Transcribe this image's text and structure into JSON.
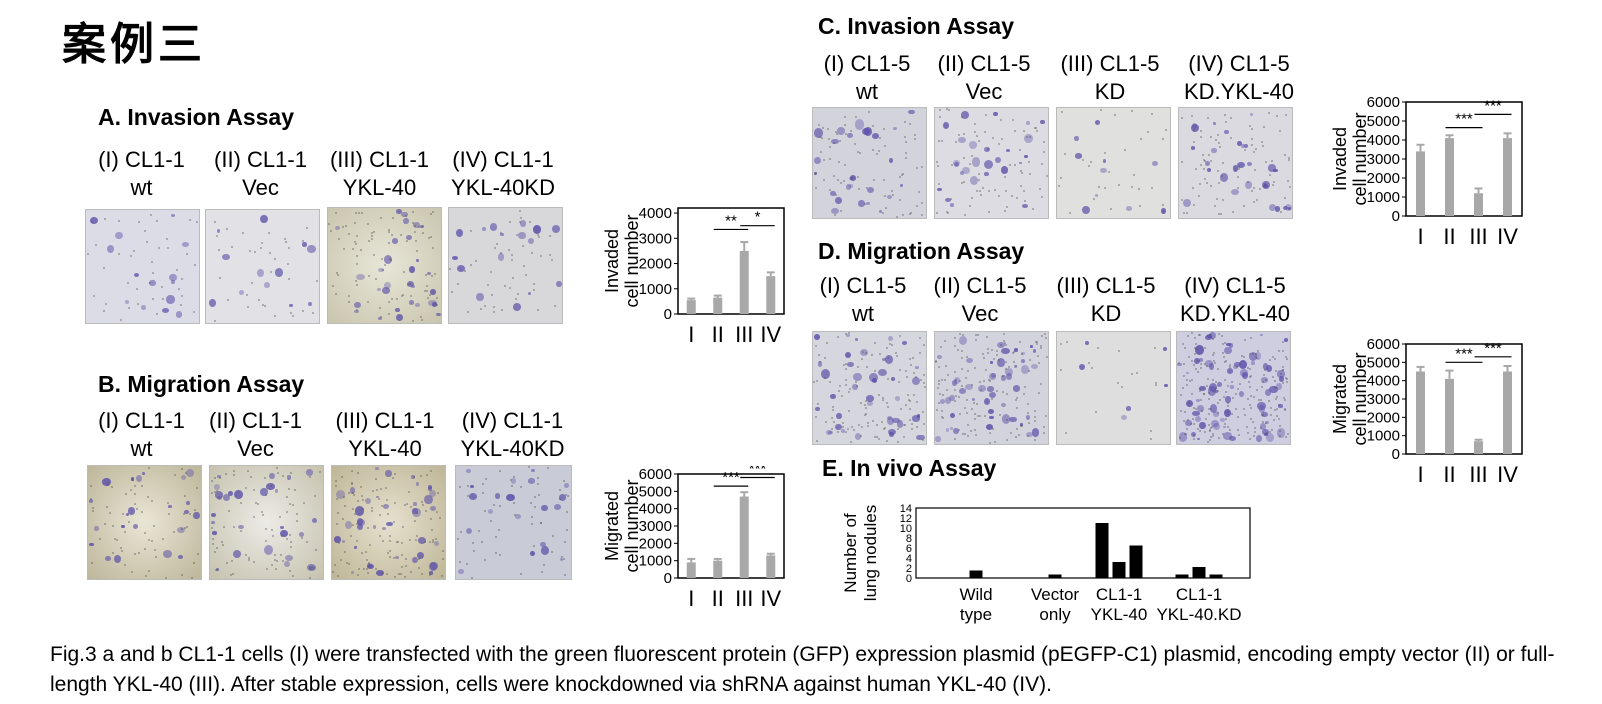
{
  "title_cn": "案例三",
  "panels": {
    "A": {
      "heading": "A. Invasion Assay",
      "columns": [
        {
          "line1": "(I) CL1-1",
          "line2": "wt"
        },
        {
          "line1": "(II) CL1-1",
          "line2": "Vec"
        },
        {
          "line1": "(III) CL1-1",
          "line2": "YKL-40"
        },
        {
          "line1": "(IV) CL1-1",
          "line2": "YKL-40KD"
        }
      ]
    },
    "B": {
      "heading": "B. Migration Assay",
      "columns": [
        {
          "line1": "(I) CL1-1",
          "line2": "wt"
        },
        {
          "line1": "(II) CL1-1",
          "line2": "Vec"
        },
        {
          "line1": "(III) CL1-1",
          "line2": "YKL-40"
        },
        {
          "line1": "(IV) CL1-1",
          "line2": "YKL-40KD"
        }
      ]
    },
    "C": {
      "heading": "C. Invasion Assay",
      "columns": [
        {
          "line1": "(I) CL1-5",
          "line2": "wt"
        },
        {
          "line1": "(II) CL1-5",
          "line2": "Vec"
        },
        {
          "line1": "(III) CL1-5",
          "line2": "KD"
        },
        {
          "line1": "(IV) CL1-5",
          "line2": "KD.YKL-40"
        }
      ]
    },
    "D": {
      "heading": "D. Migration Assay",
      "columns": [
        {
          "line1": "(I) CL1-5",
          "line2": "wt"
        },
        {
          "line1": "(II) CL1-5",
          "line2": "Vec"
        },
        {
          "line1": "(III) CL1-5",
          "line2": "KD"
        },
        {
          "line1": "(IV) CL1-5",
          "line2": "KD.YKL-40"
        }
      ]
    },
    "E": {
      "heading": "E. In vivo Assay"
    }
  },
  "caption": "Fig.3 a and b CL1-1 cells (I) were transfected with the green fluorescent protein (GFP) expression plasmid (pEGFP-C1) plasmid, encoding empty vector (II) or full-length YKL-40 (III). After stable expression, cells were knockdowned via shRNA against human YKL-40 (IV).",
  "chart_data": [
    {
      "id": "A",
      "type": "bar",
      "ylabel_lines": [
        "Invaded",
        "cell number"
      ],
      "categories": [
        "I",
        "II",
        "III",
        "IV"
      ],
      "values": [
        550,
        650,
        2500,
        1500
      ],
      "errors": [
        60,
        80,
        350,
        150
      ],
      "yticks": [
        0,
        1000,
        2000,
        3000,
        4000
      ],
      "ylim": [
        0,
        4200
      ],
      "significance": [
        {
          "from": 1,
          "to": 2,
          "label": "**",
          "level": 3350
        },
        {
          "from": 2,
          "to": 3,
          "label": "*",
          "level": 3500
        }
      ]
    },
    {
      "id": "B",
      "type": "bar",
      "ylabel_lines": [
        "Migrated",
        "cell number"
      ],
      "categories": [
        "I",
        "II",
        "III",
        "IV"
      ],
      "values": [
        900,
        1000,
        4700,
        1300
      ],
      "errors": [
        200,
        100,
        250,
        100
      ],
      "yticks": [
        0,
        1000,
        2000,
        3000,
        4000,
        5000,
        6000
      ],
      "ylim": [
        0,
        6000
      ],
      "significance": [
        {
          "from": 1,
          "to": 2,
          "label": "***",
          "level": 5300
        },
        {
          "from": 2,
          "to": 3,
          "label": "***",
          "level": 5800
        }
      ]
    },
    {
      "id": "C",
      "type": "bar",
      "ylabel_lines": [
        "Invaded",
        "cell number"
      ],
      "categories": [
        "I",
        "II",
        "III",
        "IV"
      ],
      "values": [
        3400,
        4100,
        1200,
        4100
      ],
      "errors": [
        350,
        150,
        250,
        250
      ],
      "yticks": [
        0,
        1000,
        2000,
        3000,
        4000,
        5000,
        6000
      ],
      "ylim": [
        0,
        6000
      ],
      "significance": [
        {
          "from": 1,
          "to": 2,
          "label": "***",
          "level": 4650
        },
        {
          "from": 2,
          "to": 3,
          "label": "***",
          "level": 5350
        }
      ]
    },
    {
      "id": "D",
      "type": "bar",
      "ylabel_lines": [
        "Migrated",
        "cell number"
      ],
      "categories": [
        "I",
        "II",
        "III",
        "IV"
      ],
      "values": [
        4500,
        4100,
        700,
        4500
      ],
      "errors": [
        250,
        450,
        80,
        300
      ],
      "yticks": [
        0,
        1000,
        2000,
        3000,
        4000,
        5000,
        6000
      ],
      "ylim": [
        0,
        6000
      ],
      "significance": [
        {
          "from": 1,
          "to": 2,
          "label": "***",
          "level": 5000
        },
        {
          "from": 2,
          "to": 3,
          "label": "***",
          "level": 5300
        }
      ]
    },
    {
      "id": "E",
      "type": "bar",
      "ylabel_lines": [
        "Number of",
        "lung nodules"
      ],
      "yticks": [
        0,
        2,
        4,
        6,
        8,
        10,
        12,
        14
      ],
      "ylim": [
        0,
        14
      ],
      "groups": [
        {
          "label_lines": [
            "Wild",
            "type"
          ],
          "values": [
            1.5
          ]
        },
        {
          "label_lines": [
            "Vector",
            "only"
          ],
          "values": [
            0.7
          ]
        },
        {
          "label_lines": [
            "CL1-1",
            "YKL-40"
          ],
          "values": [
            11,
            3.2,
            6.5
          ]
        },
        {
          "label_lines": [
            "CL1-1",
            "YKL-40.KD"
          ],
          "values": [
            0.7,
            2.2,
            0.7
          ]
        }
      ]
    }
  ],
  "colors": {
    "bar_gray": "#a8a8a8",
    "bar_black": "#000000",
    "stain_purple": "#5a4fa8"
  }
}
